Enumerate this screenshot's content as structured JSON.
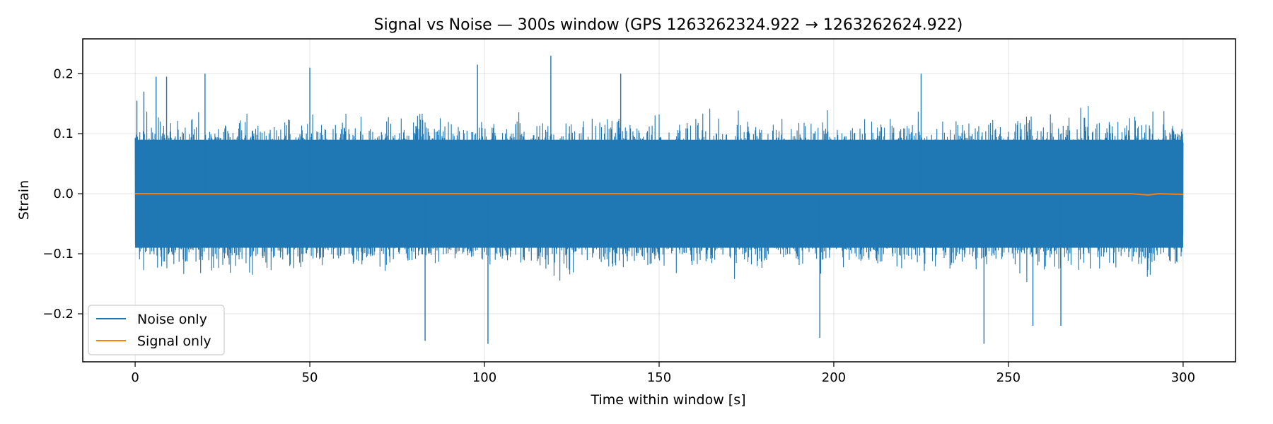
{
  "chart_data": {
    "type": "line",
    "title": "Signal vs Noise — 300s window (GPS 1263262324.922 → 1263262624.922)",
    "xlabel": "Time within window [s]",
    "ylabel": "Strain",
    "xlim": [
      -15,
      315
    ],
    "ylim": [
      -0.28,
      0.258
    ],
    "xticks": [
      0,
      50,
      100,
      150,
      200,
      250,
      300
    ],
    "xtick_labels": [
      "0",
      "50",
      "100",
      "150",
      "200",
      "250",
      "300"
    ],
    "yticks": [
      -0.2,
      -0.1,
      0.0,
      0.1,
      0.2
    ],
    "ytick_labels": [
      "−0.2",
      "−0.1",
      "0.0",
      "0.1",
      "0.2"
    ],
    "grid": true,
    "legend_position": "lower-left",
    "series": [
      {
        "name": "Noise only",
        "color": "#1f77b4",
        "x_range": [
          0,
          300
        ],
        "typical_amplitude": 0.12,
        "peak_max": 0.23,
        "peak_min": -0.25,
        "spikes": [
          {
            "x": 0.5,
            "y": 0.155
          },
          {
            "x": 2.5,
            "y": 0.17
          },
          {
            "x": 6,
            "y": 0.195
          },
          {
            "x": 9,
            "y": 0.195
          },
          {
            "x": 20,
            "y": 0.2
          },
          {
            "x": 50,
            "y": 0.21
          },
          {
            "x": 98,
            "y": 0.215
          },
          {
            "x": 119,
            "y": 0.23
          },
          {
            "x": 139,
            "y": 0.2
          },
          {
            "x": 225,
            "y": 0.2
          },
          {
            "x": 83,
            "y": -0.245
          },
          {
            "x": 101,
            "y": -0.25
          },
          {
            "x": 196,
            "y": -0.24
          },
          {
            "x": 243,
            "y": -0.25
          },
          {
            "x": 257,
            "y": -0.22
          },
          {
            "x": 265,
            "y": -0.22
          }
        ]
      },
      {
        "name": "Signal only",
        "color": "#ff7f0e",
        "x_range": [
          0,
          300
        ],
        "values_description": "flat near 0",
        "points": [
          [
            0,
            0.0
          ],
          [
            285,
            0.0
          ],
          [
            290,
            -0.002
          ],
          [
            293,
            0.0
          ],
          [
            300,
            -0.001
          ]
        ]
      }
    ]
  }
}
